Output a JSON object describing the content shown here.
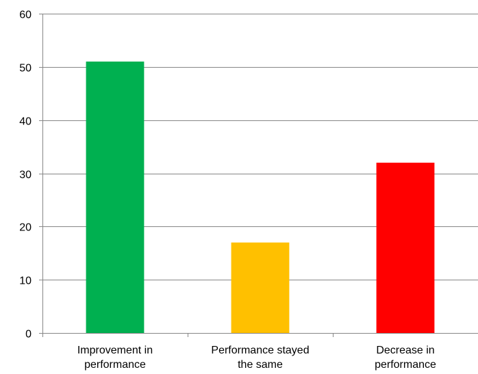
{
  "chart_data": {
    "type": "bar",
    "title": "",
    "xlabel": "",
    "ylabel": "",
    "ylim": [
      0,
      60
    ],
    "yticks": [
      0,
      10,
      20,
      30,
      40,
      50,
      60
    ],
    "grid": true,
    "legend": "none",
    "categories": [
      [
        "Improvement in",
        "performance"
      ],
      [
        "Performance stayed",
        "the same"
      ],
      [
        "Decrease in",
        "performance"
      ]
    ],
    "values": [
      51,
      17,
      32
    ],
    "colors": [
      "#00b050",
      "#ffc000",
      "#ff0000"
    ]
  }
}
